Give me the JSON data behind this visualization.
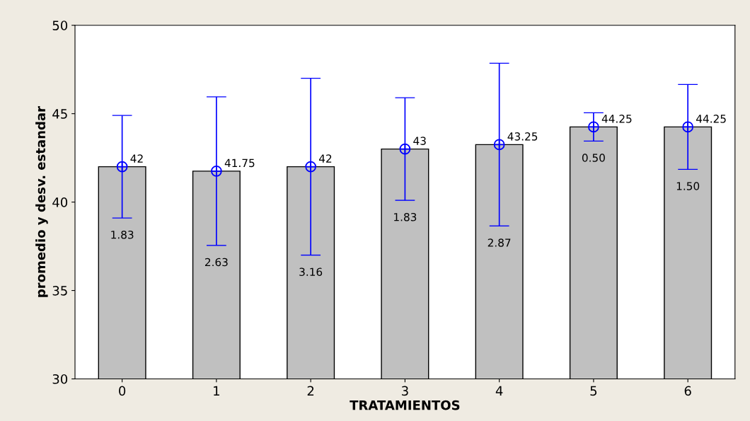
{
  "chart_data": {
    "type": "bar",
    "xlabel": "TRATAMIENTOS",
    "ylabel": "promedio y desv. estandar",
    "categories": [
      "0",
      "1",
      "2",
      "3",
      "4",
      "5",
      "6"
    ],
    "series": [
      {
        "color": "#c0c0c0",
        "values": [
          42,
          41.75,
          42,
          43,
          43.25,
          44.25,
          44.25
        ]
      },
      {
        "type": "scatter",
        "color": "#0000ff",
        "x": [
          "0",
          "1",
          "2",
          "3",
          "4",
          "5",
          "6"
        ],
        "values": [
          42,
          41.75,
          42,
          43,
          43.25,
          44.25,
          44.25
        ],
        "errors": [
          2.9,
          4.2,
          5.0,
          2.9,
          4.6,
          0.8,
          2.4
        ],
        "marker": "circle",
        "value_labels": [
          "42",
          "41.75",
          "42",
          "43",
          "43.25",
          "44.25",
          "44.25"
        ]
      }
    ],
    "ylim": [
      30,
      50
    ],
    "yticks": [
      30,
      35,
      40,
      45,
      50
    ],
    "grid": false,
    "legend": false,
    "annotations": [
      "1.83",
      "2.63",
      "3.16",
      "1.83",
      "2.87",
      "0.50",
      "1.50"
    ]
  }
}
